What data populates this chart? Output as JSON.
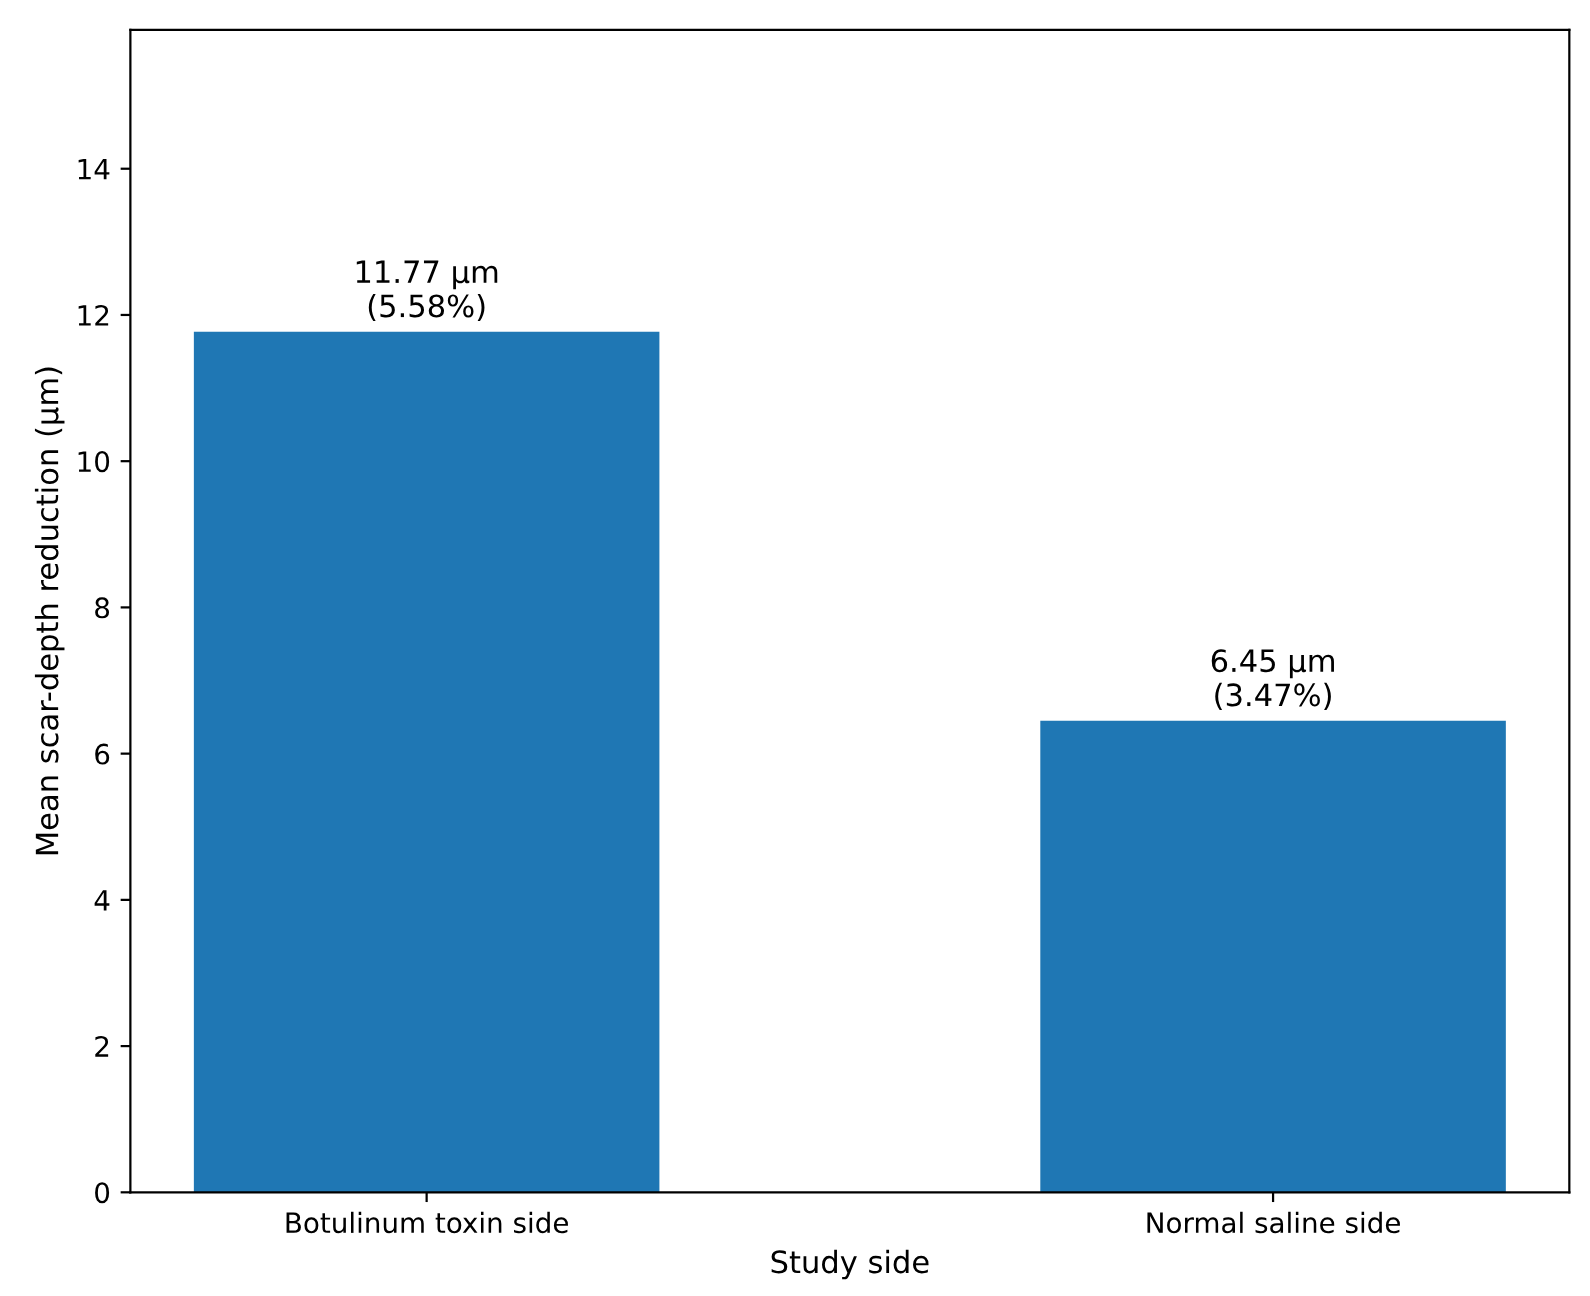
{
  "chart_data": {
    "type": "bar",
    "xlabel": "Study side",
    "ylabel": "Mean scar-depth reduction (µm)",
    "categories": [
      "Botulinum toxin side",
      "Normal saline side"
    ],
    "values": [
      11.77,
      6.45
    ],
    "color": "#1f77b4",
    "value_labels": [
      "11.77 µm\n(5.58%)",
      "6.45 µm\n(3.47%)"
    ],
    "ylim": [
      0,
      15.9
    ],
    "yticks": [
      0,
      2,
      4,
      6,
      8,
      10,
      12,
      14
    ],
    "grid": false,
    "legend": false
  }
}
